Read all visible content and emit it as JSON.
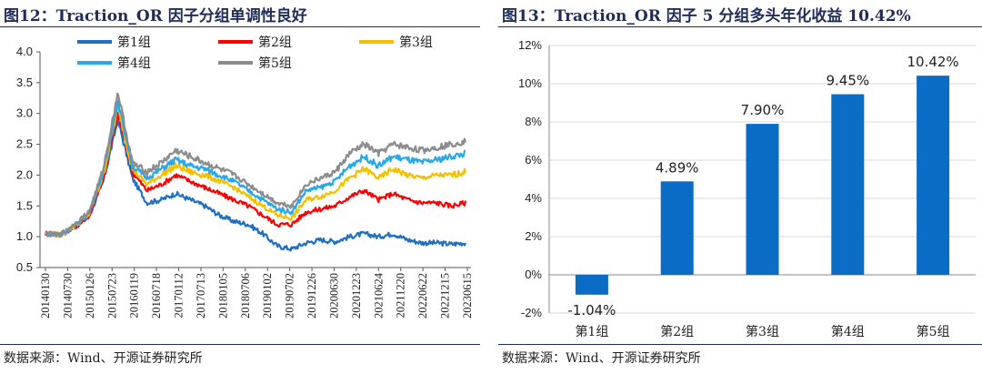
{
  "left": {
    "title": "图12：Traction_OR 因子分组单调性良好",
    "source": "数据来源：Wind、开源证券研究所"
  },
  "right": {
    "title": "图13：Traction_OR 因子 5 分组多头年化收益 10.42%",
    "source": "数据来源：Wind、开源证券研究所"
  },
  "colors": {
    "g1": "#1f6fc5",
    "g2": "#ff0000",
    "g3": "#f5c000",
    "g4": "#29a8e8",
    "g5": "#8c8c8c",
    "bar": "#0a6cc4",
    "title": "#1f2d57"
  },
  "chart_data": [
    {
      "type": "line",
      "x_tick_labels": [
        "20140130",
        "20140730",
        "20150126",
        "20150723",
        "20160119",
        "20160718",
        "20170112",
        "20170713",
        "20180105",
        "20180706",
        "20190102",
        "20190702",
        "20191226",
        "20200630",
        "20201223",
        "20210624",
        "20211220",
        "20220622",
        "20221215",
        "20230615"
      ],
      "ylim": [
        0.5,
        4.0
      ],
      "yticks": [
        "0.5",
        "1.0",
        "1.5",
        "2.0",
        "2.5",
        "3.0",
        "3.5",
        "4.0"
      ],
      "legend_position": "top",
      "series": [
        {
          "name": "第1组",
          "values": [
            1.05,
            1.03,
            1.15,
            1.32,
            1.9,
            2.9,
            1.95,
            1.55,
            1.6,
            1.7,
            1.6,
            1.5,
            1.35,
            1.25,
            1.2,
            1.05,
            0.85,
            0.8,
            0.9,
            0.95,
            0.92,
            1.0,
            1.05,
            1.0,
            1.05,
            0.95,
            0.9,
            0.9,
            0.88,
            0.9
          ]
        },
        {
          "name": "第2组",
          "values": [
            1.05,
            1.03,
            1.16,
            1.34,
            1.95,
            3.0,
            2.05,
            1.75,
            1.85,
            2.0,
            1.9,
            1.8,
            1.7,
            1.6,
            1.5,
            1.35,
            1.2,
            1.2,
            1.4,
            1.45,
            1.5,
            1.65,
            1.75,
            1.6,
            1.7,
            1.6,
            1.55,
            1.55,
            1.5,
            1.55
          ]
        },
        {
          "name": "第3组",
          "values": [
            1.05,
            1.03,
            1.17,
            1.36,
            2.0,
            3.1,
            2.1,
            1.85,
            2.0,
            2.15,
            2.05,
            2.0,
            1.9,
            1.8,
            1.65,
            1.5,
            1.35,
            1.3,
            1.6,
            1.65,
            1.75,
            1.95,
            2.1,
            1.95,
            2.1,
            2.0,
            1.95,
            2.0,
            2.0,
            2.05
          ]
        },
        {
          "name": "第4组",
          "values": [
            1.05,
            1.03,
            1.18,
            1.38,
            2.05,
            3.2,
            2.15,
            1.95,
            2.1,
            2.25,
            2.15,
            2.1,
            2.0,
            1.9,
            1.75,
            1.6,
            1.45,
            1.4,
            1.75,
            1.8,
            1.9,
            2.15,
            2.3,
            2.15,
            2.3,
            2.25,
            2.2,
            2.25,
            2.3,
            2.35
          ]
        },
        {
          "name": "第5组",
          "values": [
            1.05,
            1.03,
            1.2,
            1.4,
            2.1,
            3.35,
            2.2,
            2.05,
            2.2,
            2.4,
            2.3,
            2.2,
            2.1,
            2.0,
            1.85,
            1.7,
            1.55,
            1.5,
            1.85,
            1.95,
            2.05,
            2.35,
            2.5,
            2.35,
            2.5,
            2.45,
            2.4,
            2.45,
            2.5,
            2.55
          ]
        }
      ]
    },
    {
      "type": "bar",
      "categories": [
        "第1组",
        "第2组",
        "第3组",
        "第4组",
        "第5组"
      ],
      "values": [
        -1.04,
        4.89,
        7.9,
        9.45,
        10.42
      ],
      "value_labels": [
        "-1.04%",
        "4.89%",
        "7.90%",
        "9.45%",
        "10.42%"
      ],
      "ylim": [
        -2,
        12
      ],
      "yticks": [
        "-2%",
        "0%",
        "2%",
        "4%",
        "6%",
        "8%",
        "10%",
        "12%"
      ],
      "grid": true
    }
  ]
}
